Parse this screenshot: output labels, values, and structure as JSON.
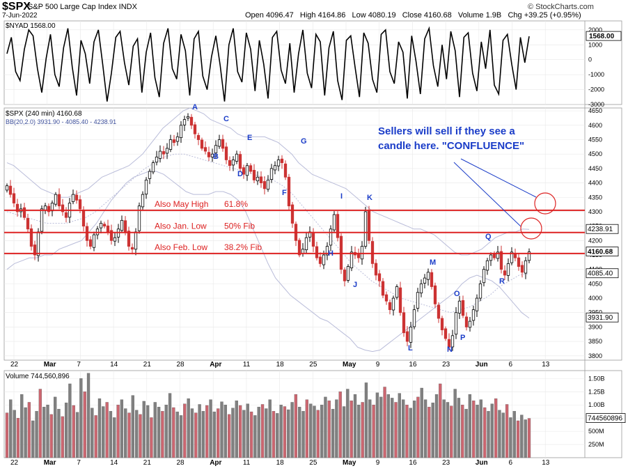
{
  "header": {
    "ticker": "$SPX",
    "description": "S&P 500 Large Cap Index  INDX",
    "date": "7-Jun-2022",
    "brand": "© StockCharts.com",
    "open_label": "Open",
    "open": "4096.47",
    "high_label": "High",
    "high": "4164.86",
    "low_label": "Low",
    "low": "4080.19",
    "close_label": "Close",
    "close": "4160.68",
    "volume_label": "Volume",
    "volume": "1.9B",
    "chg_label": "Chg",
    "chg": "+39.25 (+0.95%)"
  },
  "colors": {
    "up": "#ffffff",
    "down": "#cc3333",
    "line_red": "#dd2222",
    "annotation_blue": "#1a3cc8",
    "bands": "#b9bcd9",
    "grid": "#e8e8e8",
    "vol_up": "#808080",
    "vol_down": "#cc6670"
  },
  "chart_data": [
    {
      "type": "line",
      "title": "$NYAD 1568.00",
      "series_name": "$NYAD",
      "last_value_label": "1568.00",
      "y_ticks": [
        "2000",
        "1000",
        "0",
        "-1000",
        "-2000",
        "-3000"
      ],
      "ylim": [
        -3000,
        2600
      ],
      "values": [
        400,
        1500,
        -800,
        -1400,
        700,
        2000,
        1600,
        -600,
        -2200,
        100,
        1700,
        -1000,
        -1800,
        800,
        2100,
        -500,
        -2400,
        1300,
        400,
        -1600,
        1200,
        2000,
        -300,
        -2800,
        -900,
        1500,
        1900,
        -200,
        -1700,
        900,
        1400,
        -2200,
        500,
        1800,
        -1200,
        -2500,
        1100,
        2100,
        -600,
        -1300,
        1700,
        600,
        -2400,
        1400,
        1900,
        -1100,
        -2000,
        200,
        1600,
        -400,
        -2800,
        1000,
        2100,
        -800,
        -1500,
        1800,
        700,
        -2100,
        1300,
        -300,
        -2600,
        1500,
        1900,
        -700,
        -1600,
        1100,
        -2200,
        400,
        2000,
        -900,
        -1900,
        1700,
        1200,
        -2400,
        800,
        1900,
        -1400,
        -2700,
        1300,
        1600,
        -500,
        -2500,
        1800,
        1100,
        -1300,
        -2200,
        1700,
        2000,
        -800,
        -1600,
        1200,
        500,
        -2600,
        1600,
        -100,
        -2300,
        1400,
        2100,
        -400,
        -1800,
        1000,
        -1300,
        1900,
        600,
        -2500,
        1500,
        1800,
        -900,
        -2100,
        1200,
        -600,
        2000,
        -1700,
        -2300,
        1300,
        1700,
        -300,
        -2000,
        1500,
        -200,
        1568
      ]
    },
    {
      "type": "candlestick",
      "title": "$SPX (240 min) 4160.68",
      "series_name": "$SPX",
      "legend": "BB(20,2.0) 3931.90 - 4085.40 - 4238.91",
      "ylim": [
        3785,
        4660
      ],
      "y_ticks": [
        "4650",
        "4600",
        "4550",
        "4500",
        "4450",
        "4400",
        "4350",
        "4300",
        "4250",
        "4200",
        "4150",
        "4100",
        "4050",
        "4000",
        "3950",
        "3900",
        "3850",
        "3800"
      ],
      "right_labels": [
        "4238.91",
        "4160.68",
        "4085.40",
        "3931.90"
      ],
      "x_ticks": [
        "22",
        "Mar",
        "7",
        "14",
        "21",
        "28",
        "Apr",
        "11",
        "18",
        "25",
        "May",
        "9",
        "16",
        "23",
        "Jun",
        "6",
        "13"
      ],
      "closes": [
        4390,
        4360,
        4330,
        4300,
        4310,
        4280,
        4240,
        4180,
        4150,
        4230,
        4310,
        4320,
        4300,
        4330,
        4360,
        4320,
        4300,
        4280,
        4330,
        4360,
        4340,
        4310,
        4250,
        4200,
        4180,
        4220,
        4240,
        4260,
        4250,
        4230,
        4200,
        4210,
        4240,
        4270,
        4230,
        4180,
        4170,
        4230,
        4320,
        4360,
        4410,
        4440,
        4470,
        4490,
        4510,
        4500,
        4520,
        4550,
        4540,
        4560,
        4600,
        4620,
        4630,
        4600,
        4570,
        4550,
        4520,
        4510,
        4490,
        4500,
        4530,
        4550,
        4520,
        4480,
        4460,
        4480,
        4500,
        4450,
        4430,
        4460,
        4440,
        4410,
        4420,
        4400,
        4380,
        4410,
        4450,
        4460,
        4480,
        4470,
        4420,
        4320,
        4260,
        4200,
        4150,
        4170,
        4210,
        4230,
        4180,
        4140,
        4120,
        4150,
        4180,
        4240,
        4290,
        4210,
        4100,
        4060,
        4110,
        4160,
        4150,
        4140,
        4180,
        4300,
        4200,
        4120,
        4080,
        4060,
        4010,
        3990,
        3960,
        4000,
        4040,
        3950,
        3880,
        3850,
        3900,
        3960,
        4020,
        4050,
        4070,
        4090,
        4040,
        3980,
        3930,
        3890,
        3860,
        3830,
        3870,
        3950,
        3990,
        3940,
        3900,
        3920,
        3960,
        4000,
        4050,
        4100,
        4130,
        4150,
        4140,
        4160,
        4100,
        4080,
        4120,
        4160,
        4140,
        4110,
        4090,
        4130,
        4160.68
      ],
      "bb_upper": [
        4470,
        4460,
        4440,
        4420,
        4400,
        4380,
        4370,
        4360,
        4350,
        4350,
        4360,
        4370,
        4380,
        4400,
        4420,
        4430,
        4440,
        4450,
        4460,
        4480,
        4500,
        4530,
        4560,
        4590,
        4610,
        4630,
        4650,
        4660,
        4650,
        4640,
        4620,
        4610,
        4600,
        4590,
        4570,
        4560,
        4560,
        4560,
        4560,
        4550,
        4540,
        4520,
        4500,
        4470,
        4450,
        4430,
        4420,
        4410,
        4400,
        4390,
        4380,
        4360,
        4340,
        4320,
        4300,
        4290,
        4280,
        4270,
        4260,
        4250,
        4240,
        4240,
        4230,
        4220,
        4200,
        4180,
        4160,
        4150,
        4150,
        4160,
        4170,
        4190,
        4210,
        4220,
        4230,
        4230,
        4240,
        4239
      ],
      "bb_lower": [
        4100,
        4120,
        4130,
        4140,
        4140,
        4150,
        4150,
        4170,
        4180,
        4190,
        4200,
        4230,
        4260,
        4300,
        4340,
        4370,
        4400,
        4420,
        4430,
        4440,
        4440,
        4430,
        4410,
        4390,
        4370,
        4360,
        4360,
        4360,
        4370,
        4370,
        4360,
        4340,
        4300,
        4240,
        4180,
        4120,
        4070,
        4040,
        4010,
        3990,
        3970,
        3950,
        3930,
        3920,
        3900,
        3880,
        3860,
        3830,
        3820,
        3815,
        3820,
        3840,
        3860,
        3880,
        3900,
        3920,
        3940,
        3960,
        3980,
        4000,
        4020,
        4050,
        4070,
        4080,
        4070,
        4060,
        4040,
        4010,
        3980,
        3950,
        3931
      ],
      "bb_middle": [
        4300,
        4290,
        4280,
        4270,
        4260,
        4260,
        4260,
        4270,
        4280,
        4300,
        4330,
        4360,
        4390,
        4420,
        4450,
        4470,
        4490,
        4500,
        4500,
        4490,
        4480,
        4470,
        4460,
        4450,
        4440,
        4430,
        4420,
        4410,
        4390,
        4360,
        4320,
        4280,
        4240,
        4200,
        4160,
        4120,
        4090,
        4060,
        4040,
        4020,
        4000,
        3990,
        3980,
        3970,
        3960,
        3950,
        3960,
        3970,
        3990,
        4010,
        4040,
        4060,
        4080,
        4085
      ],
      "horizontal_lines": [
        {
          "value": 4305,
          "label": "Also May High",
          "fib": "61.8%"
        },
        {
          "value": 4228,
          "label": "Also Jan. Low",
          "fib": "50% Fib"
        },
        {
          "value": 4155,
          "label": "Also Feb. Low",
          "fib": "38.2% Fib"
        }
      ],
      "wave_labels": [
        "A",
        "B",
        "C",
        "D",
        "E",
        "F",
        "G",
        "H",
        "I",
        "J",
        "K",
        "L",
        "M",
        "N",
        "O",
        "P",
        "Q",
        "R"
      ],
      "annotation": [
        "Sellers will sell if they see a",
        "candle here. \"CONFLUENCE\""
      ]
    },
    {
      "type": "bar",
      "title": "Volume 744,560,896",
      "series_name": "Volume",
      "last_value_label": "744560896",
      "y_ticks": [
        "1.50B",
        "1.25B",
        "1.00B",
        "750M",
        "500M",
        "250M"
      ],
      "ylim": [
        0,
        1650000000
      ],
      "x_ticks": [
        "22",
        "Mar",
        "7",
        "14",
        "21",
        "28",
        "Apr",
        "11",
        "18",
        "25",
        "May",
        "9",
        "16",
        "23",
        "Jun",
        "6",
        "13"
      ],
      "values": [
        850,
        1100,
        900,
        750,
        1200,
        950,
        1050,
        700,
        880,
        1300,
        960,
        1000,
        820,
        1150,
        920,
        780,
        1040,
        1400,
        990,
        860,
        1500,
        1250,
        1600,
        940,
        800,
        1120,
        970,
        1050,
        880,
        760,
        1000,
        1100,
        930,
        850,
        1180,
        900,
        820,
        1070,
        990,
        760,
        1050,
        960,
        880,
        1000,
        1220,
        950,
        870,
        800,
        1020,
        1120,
        930,
        850,
        1010,
        880,
        990,
        1100,
        870,
        930,
        1060,
        1000,
        820,
        940,
        1080,
        990,
        900,
        1020,
        870,
        800,
        960,
        1010,
        930,
        1100,
        880,
        840,
        1000,
        970,
        910,
        1050,
        1200,
        960,
        880,
        1100,
        1020,
        980,
        900,
        1000,
        1150,
        1080,
        920,
        1100,
        1250,
        970,
        1300,
        1080,
        1200,
        1000,
        1050,
        1420,
        1100,
        1000,
        1230,
        1150,
        1340,
        1200,
        1130,
        1050,
        1220,
        1100,
        1000,
        940,
        1080,
        1150,
        1320,
        1100,
        960,
        1040,
        1200,
        1400,
        1100,
        1050,
        980,
        1300,
        1130,
        1000,
        920,
        1200,
        1080,
        1000,
        1100,
        950,
        880,
        1020,
        1120,
        900,
        850,
        1010,
        760,
        880,
        700,
        810,
        720,
        745
      ]
    }
  ]
}
